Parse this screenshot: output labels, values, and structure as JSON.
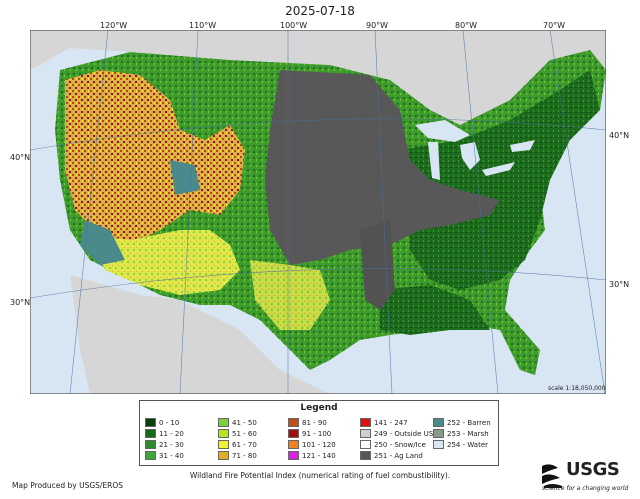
{
  "title": "2025-07-18",
  "lon_labels": [
    "120°W",
    "110°W",
    "100°W",
    "90°W",
    "80°W",
    "70°W"
  ],
  "lat_labels_left": [
    "40°N",
    "30°N"
  ],
  "lat_labels_right": [
    "40°N",
    "30°N"
  ],
  "scale": "scale 1:18,050,000",
  "legend": {
    "title": "Legend",
    "columns": [
      [
        {
          "label": "0 - 10",
          "color": "#0a3d0a"
        },
        {
          "label": "11 - 20",
          "color": "#186a18"
        },
        {
          "label": "21 - 30",
          "color": "#2e8b2e"
        },
        {
          "label": "31 - 40",
          "color": "#3ea53e"
        }
      ],
      [
        {
          "label": "41 - 50",
          "color": "#7ad13a"
        },
        {
          "label": "51 - 60",
          "color": "#b5e61d"
        },
        {
          "label": "61 - 70",
          "color": "#f7f030"
        },
        {
          "label": "71 - 80",
          "color": "#e0b020"
        }
      ],
      [
        {
          "label": "81 - 90",
          "color": "#c0501a"
        },
        {
          "label": "91 - 100",
          "color": "#a01010"
        },
        {
          "label": "101 - 120",
          "color": "#f08020"
        },
        {
          "label": "121 - 140",
          "color": "#e020e0"
        }
      ],
      [
        {
          "label": "141 - 247",
          "color": "#e01010"
        },
        {
          "label": "249 - Outside US",
          "color": "#d0d0d0"
        },
        {
          "label": "250 - Snow/Ice",
          "color": "#ffffff"
        },
        {
          "label": "251 - Ag Land",
          "color": "#585858"
        }
      ],
      [
        {
          "label": "252 - Barren",
          "color": "#4a8a8a"
        },
        {
          "label": "253 - Marsh",
          "color": "#8a9a8a"
        },
        {
          "label": "254 - Water",
          "color": "#d8e6f4"
        }
      ]
    ]
  },
  "caption": "Wildland Fire Potential Index (numerical rating of fuel combustibility).",
  "credit": "Map Produced by USGS/EROS",
  "logo": {
    "text": "USGS",
    "tagline": "science for a changing world"
  }
}
